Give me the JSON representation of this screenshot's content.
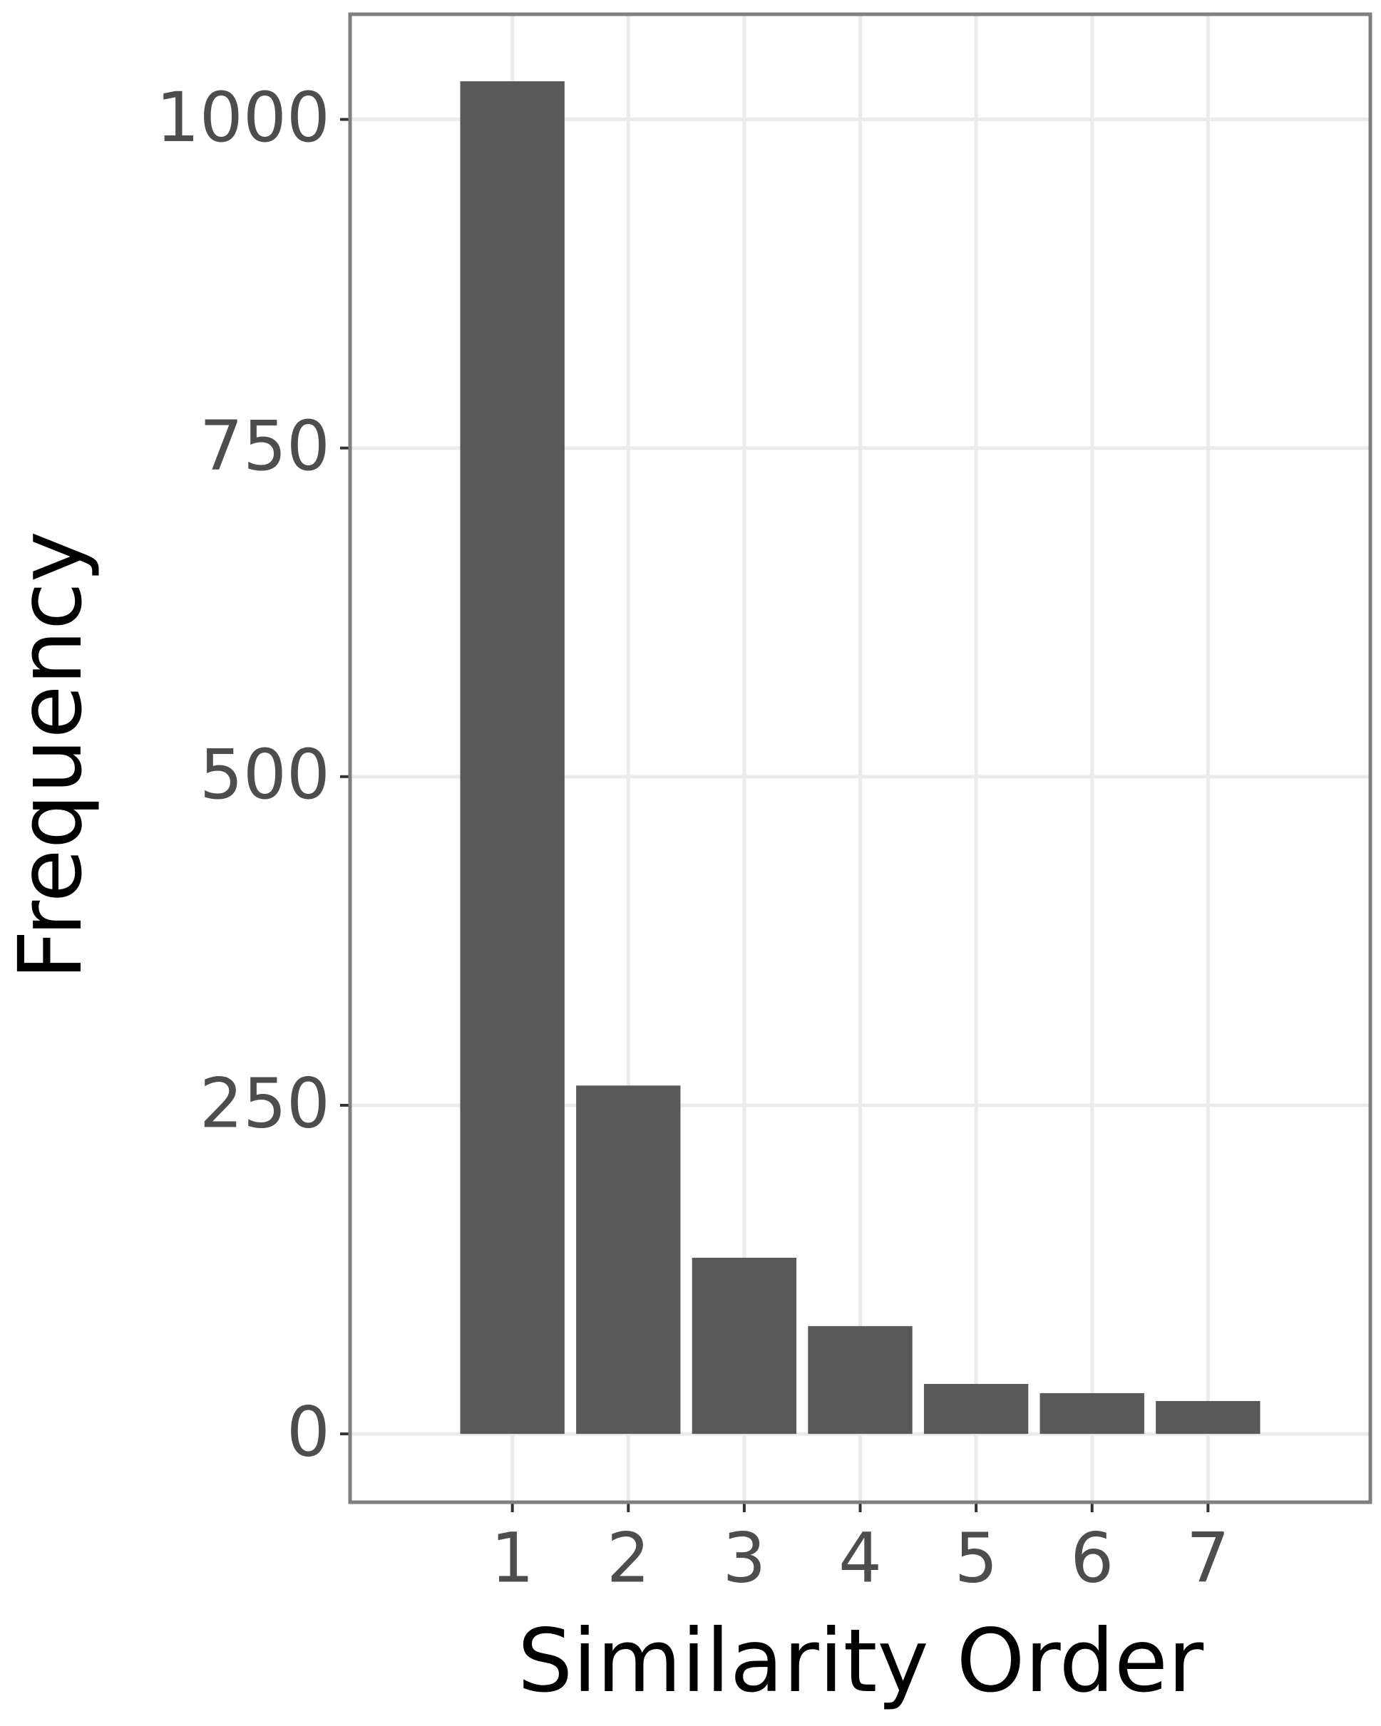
{
  "chart_data": {
    "type": "bar",
    "x_label": "Similarity Order",
    "y_label": "Frequency",
    "x": [
      1,
      2,
      3,
      4,
      5,
      6,
      7
    ],
    "values": [
      1029,
      265,
      134,
      82,
      38,
      31,
      25
    ],
    "color": "#595959",
    "xlim": [
      -0.4,
      8.4
    ],
    "xticks": [
      1,
      2,
      3,
      4,
      5,
      6,
      7
    ],
    "ylim": [
      -52,
      1080
    ],
    "yticks": [
      0,
      250,
      500,
      750,
      1000
    ],
    "grid": true
  }
}
